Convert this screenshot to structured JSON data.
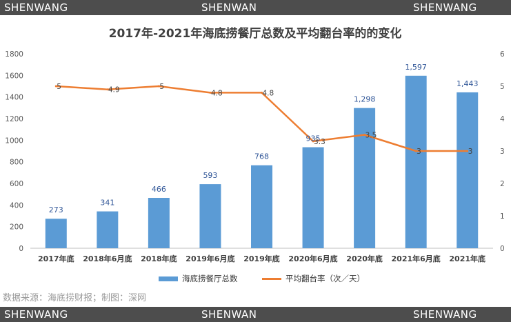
{
  "watermark": {
    "top": [
      "SHENWANG",
      "SHENWAN",
      "SHENWANG"
    ],
    "bottom": [
      "SHENWANG",
      "SHENWAN",
      "SHENWANG"
    ]
  },
  "source_text": "数据来源：海底捞财报；制图：深网",
  "chart_data": {
    "type": "bar",
    "title": "2017年-2021年海底捞餐厅总数及平均翻台率的的变化",
    "categories": [
      "2017年底",
      "2018年6月底",
      "2018年底",
      "2019年6月底",
      "2019年底",
      "2020年6月底",
      "2020年底",
      "2021年6月底",
      "2021年底"
    ],
    "series": [
      {
        "name": "海底捞餐厅总数",
        "type": "bar",
        "axis": "left",
        "color": "#5b9bd5",
        "values": [
          273,
          341,
          466,
          593,
          768,
          935,
          1298,
          1597,
          1443
        ],
        "labels": [
          "273",
          "341",
          "466",
          "593",
          "768",
          "935",
          "1,298",
          "1,597",
          "1,443"
        ]
      },
      {
        "name": "平均翻台率（次／天）",
        "type": "line",
        "axis": "right",
        "color": "#ed7d31",
        "values": [
          5,
          4.9,
          5,
          4.8,
          4.8,
          3.3,
          3.5,
          3,
          3
        ],
        "labels": [
          "5",
          "4.9",
          "5",
          "4.8",
          "4.8",
          "3.3",
          "3.5",
          "3",
          "3"
        ]
      }
    ],
    "y_left": {
      "min": 0,
      "max": 1800,
      "ticks": [
        "0",
        "200",
        "400",
        "600",
        "800",
        "1000",
        "1200",
        "1400",
        "1600",
        "1800"
      ]
    },
    "y_right": {
      "min": 0,
      "max": 6,
      "ticks": [
        "0",
        "1",
        "2",
        "3",
        "4",
        "5",
        "6"
      ]
    },
    "grid": false,
    "legend_position": "bottom",
    "label_color": "#2f5597"
  }
}
